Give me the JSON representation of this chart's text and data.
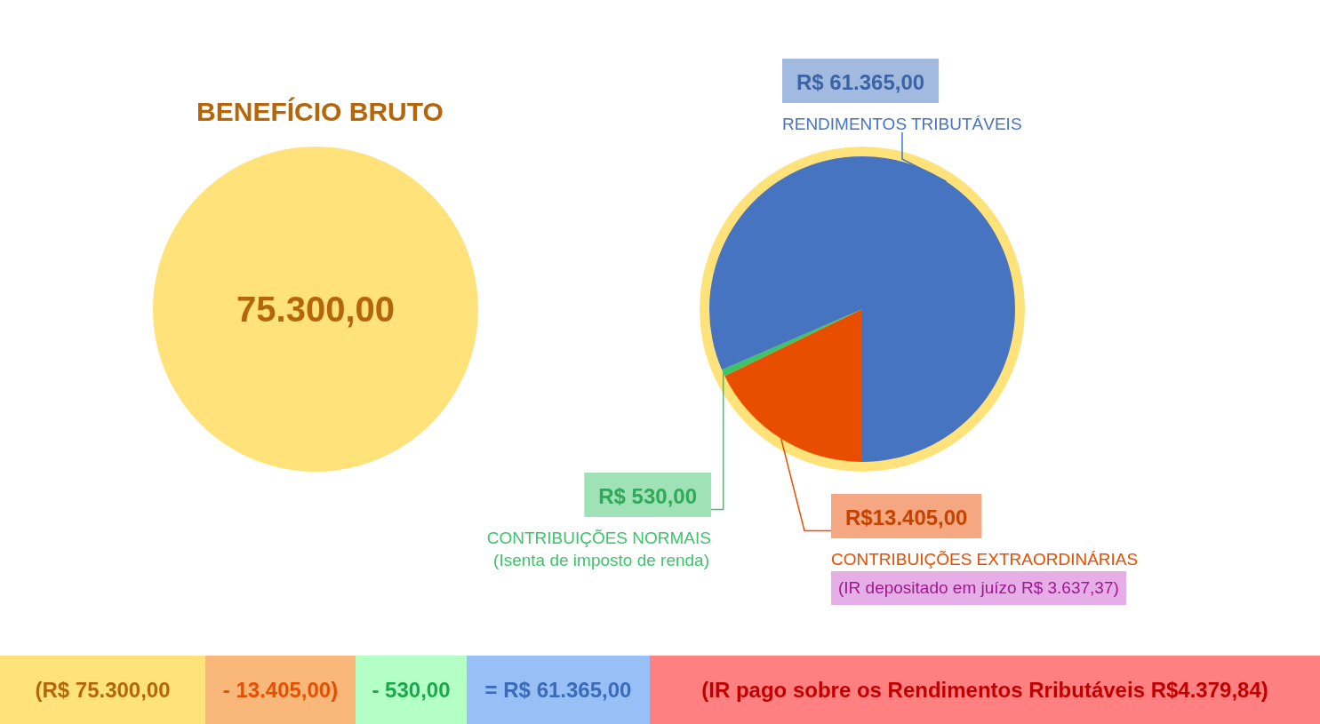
{
  "chart_data": [
    {
      "type": "pie",
      "title": "BENEFÍCIO BRUTO",
      "categories": [
        null
      ],
      "values": [
        75300
      ],
      "colors": [
        "#ffe27a"
      ],
      "value_labels": [
        "75.300,00"
      ]
    },
    {
      "type": "pie",
      "categories": [
        "CONTRIBUIÇÕES EXTRAORDINÁRIAS",
        "CONTRIBUIÇÕES NORMAIS",
        "RENDIMENTOS TRIBUTÁVEIS"
      ],
      "values": [
        13405,
        530,
        61365
      ],
      "colors": [
        "#e84e00",
        "#3cc46a",
        "#4674c1"
      ],
      "value_labels": [
        "R$13.405,00",
        "R$ 530,00",
        "R$ 61.365,00"
      ],
      "annotations": [
        "(Isenta de imposto de renda)",
        "(IR depositado em juízo R$ 3.637,37)"
      ]
    },
    {
      "type": "other",
      "annotations": [
        "(R$ 75.300,00",
        "- 13.405,00)",
        "- 530,00",
        "= R$ 61.365,00",
        "(IR pago sobre os Rendimentos Rributáveis R$4.379,84)"
      ]
    }
  ]
}
